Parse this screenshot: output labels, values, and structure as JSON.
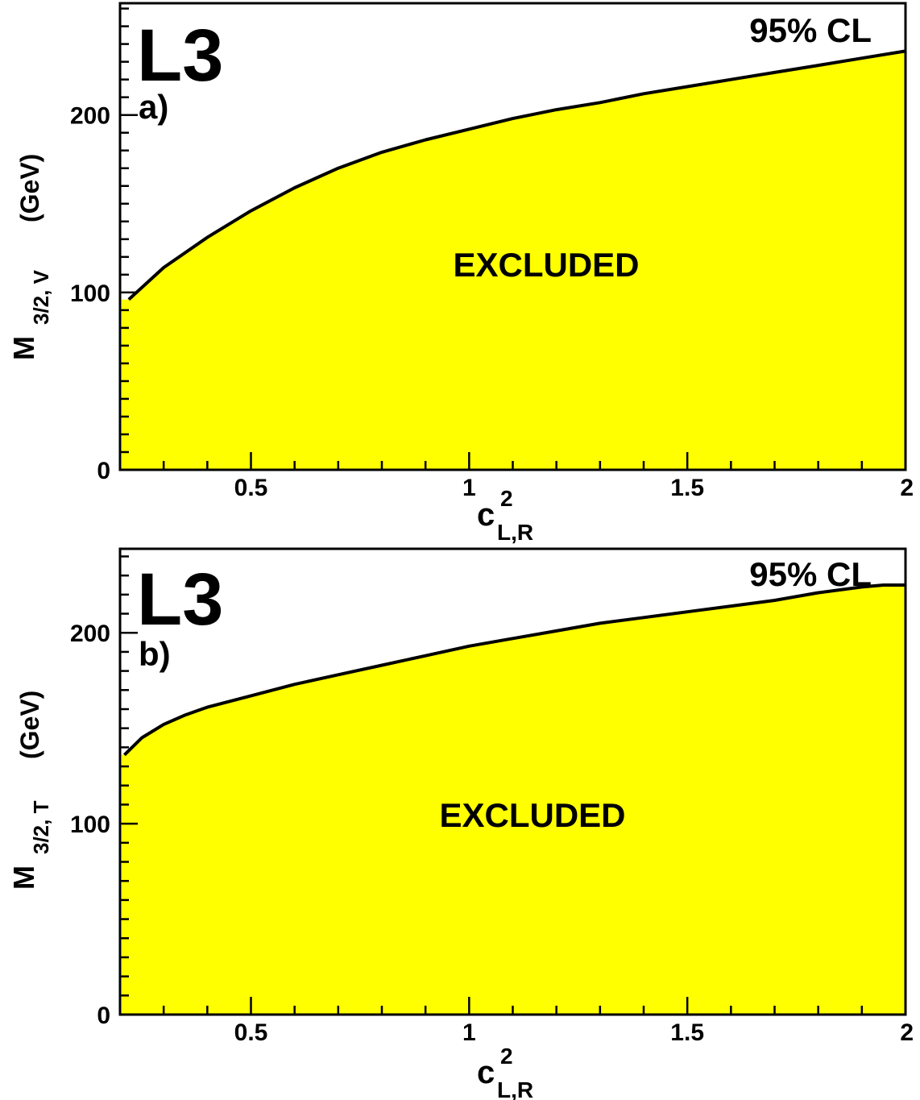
{
  "colors": {
    "excluded_fill": "#ffff00",
    "curve": "#000000",
    "frame": "#000000"
  },
  "chart_data": [
    {
      "type": "area",
      "logo": "L3",
      "panel_label": "a)",
      "confidence_label": "95% CL",
      "region_label": "EXCLUDED",
      "ylabel_main": "M",
      "ylabel_sub": "3/2, V",
      "ylabel_unit": "(GeV)",
      "xlabel_main": "c",
      "xlabel_sup": "2",
      "xlabel_sub": "L,R",
      "xlim": [
        0.2,
        2.0
      ],
      "ylim": [
        0,
        263
      ],
      "xticks": [
        0.5,
        1,
        1.5,
        2
      ],
      "xtick_labels": [
        "0.5",
        "1",
        "1.5",
        "2"
      ],
      "yticks": [
        0,
        100,
        200
      ],
      "ytick_labels": [
        "0",
        "100",
        "200"
      ],
      "x": [
        0.22,
        0.3,
        0.4,
        0.5,
        0.6,
        0.7,
        0.8,
        0.9,
        1.0,
        1.1,
        1.2,
        1.3,
        1.4,
        1.5,
        1.6,
        1.7,
        1.8,
        1.9,
        2.0
      ],
      "y": [
        96,
        114,
        131,
        146,
        159,
        170,
        179,
        186,
        192,
        198,
        203,
        207,
        212,
        216,
        220,
        224,
        228,
        232,
        236
      ]
    },
    {
      "type": "area",
      "logo": "L3",
      "panel_label": "b)",
      "confidence_label": "95% CL",
      "region_label": "EXCLUDED",
      "ylabel_main": "M",
      "ylabel_sub": "3/2, T",
      "ylabel_unit": "(GeV)",
      "xlabel_main": "c",
      "xlabel_sup": "2",
      "xlabel_sub": "L,R",
      "xlim": [
        0.2,
        2.0
      ],
      "ylim": [
        0,
        244
      ],
      "xticks": [
        0.5,
        1,
        1.5,
        2
      ],
      "xtick_labels": [
        "0.5",
        "1",
        "1.5",
        "2"
      ],
      "yticks": [
        0,
        100,
        200
      ],
      "ytick_labels": [
        "0",
        "100",
        "200"
      ],
      "x": [
        0.21,
        0.25,
        0.3,
        0.35,
        0.4,
        0.5,
        0.6,
        0.7,
        0.8,
        0.9,
        1.0,
        1.1,
        1.2,
        1.3,
        1.4,
        1.5,
        1.6,
        1.7,
        1.8,
        1.9,
        1.95,
        2.0
      ],
      "y": [
        136,
        145,
        152,
        157,
        161,
        167,
        173,
        178,
        183,
        188,
        193,
        197,
        201,
        205,
        208,
        211,
        214,
        217,
        221,
        224,
        225,
        225
      ]
    }
  ]
}
